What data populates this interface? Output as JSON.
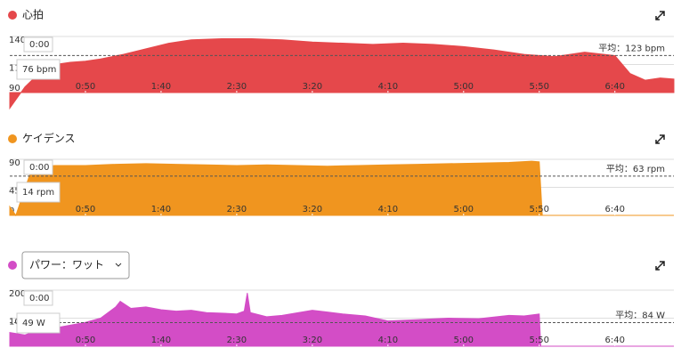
{
  "chart_data": [
    {
      "type": "area",
      "title": "心拍",
      "color": "#e5484b",
      "x": [
        0,
        10,
        20,
        30,
        40,
        50,
        60,
        75,
        90,
        105,
        120,
        140,
        160,
        180,
        200,
        220,
        240,
        260,
        280,
        300,
        320,
        340,
        360,
        380,
        400,
        410,
        420,
        430,
        439
      ],
      "values": [
        76,
        95,
        108,
        115,
        117,
        118,
        120,
        124,
        129,
        134,
        137,
        138,
        138,
        137,
        135,
        134,
        133,
        134,
        133,
        131,
        128,
        124,
        122,
        126,
        123,
        107,
        101,
        103,
        102
      ],
      "xlim": [
        0,
        439
      ],
      "xticks": [
        {
          "value": 50,
          "label": "0:50"
        },
        {
          "value": 100,
          "label": "1:40"
        },
        {
          "value": 150,
          "label": "2:30"
        },
        {
          "value": 200,
          "label": "3:20"
        },
        {
          "value": 250,
          "label": "4:10"
        },
        {
          "value": 300,
          "label": "5:00"
        },
        {
          "value": 350,
          "label": "5:50"
        },
        {
          "value": 400,
          "label": "6:40"
        }
      ],
      "ylim": [
        90,
        140
      ],
      "yticks": [
        90,
        115,
        140
      ],
      "grid": true,
      "average": {
        "value": 123,
        "label": "平均：123 bpm"
      },
      "tooltip": {
        "time": "0:00",
        "label": "76 bpm"
      }
    },
    {
      "type": "area",
      "title": "ケイデンス",
      "color": "#f0951f",
      "x": [
        0,
        4,
        15,
        30,
        50,
        70,
        90,
        110,
        130,
        150,
        170,
        190,
        210,
        230,
        250,
        270,
        290,
        310,
        330,
        345,
        350,
        352,
        439
      ],
      "values": [
        14,
        0,
        78,
        80,
        80,
        82,
        83,
        82,
        81,
        80,
        81,
        80,
        79,
        80,
        81,
        82,
        83,
        84,
        85,
        87,
        86,
        0,
        0
      ],
      "xlim": [
        0,
        439
      ],
      "xticks": [
        {
          "value": 50,
          "label": "0:50"
        },
        {
          "value": 100,
          "label": "1:40"
        },
        {
          "value": 150,
          "label": "2:30"
        },
        {
          "value": 200,
          "label": "3:20"
        },
        {
          "value": 250,
          "label": "4:10"
        },
        {
          "value": 300,
          "label": "5:00"
        },
        {
          "value": 350,
          "label": "5:50"
        },
        {
          "value": 400,
          "label": "6:40"
        }
      ],
      "ylim": [
        0,
        90
      ],
      "yticks": [
        0,
        45,
        90
      ],
      "grid": true,
      "average": {
        "value": 63,
        "label": "平均：63 rpm"
      },
      "tooltip": {
        "time": "0:00",
        "label": "14 rpm"
      }
    },
    {
      "type": "area",
      "title": "パワー：ワット",
      "color": "#d34dc6",
      "x": [
        0,
        10,
        20,
        30,
        40,
        50,
        60,
        70,
        73,
        80,
        90,
        100,
        110,
        120,
        130,
        140,
        150,
        155,
        157,
        159,
        170,
        180,
        200,
        210,
        220,
        235,
        250,
        270,
        290,
        310,
        330,
        340,
        350,
        351,
        439
      ],
      "values": [
        49,
        40,
        60,
        65,
        75,
        85,
        100,
        140,
        160,
        135,
        140,
        130,
        125,
        128,
        120,
        118,
        115,
        125,
        190,
        120,
        105,
        110,
        128,
        122,
        115,
        108,
        90,
        95,
        100,
        98,
        110,
        108,
        115,
        0,
        0
      ],
      "xlim": [
        0,
        439
      ],
      "xticks": [
        {
          "value": 50,
          "label": "0:50"
        },
        {
          "value": 100,
          "label": "1:40"
        },
        {
          "value": 150,
          "label": "2:30"
        },
        {
          "value": 200,
          "label": "3:20"
        },
        {
          "value": 250,
          "label": "4:10"
        },
        {
          "value": 300,
          "label": "5:00"
        },
        {
          "value": 350,
          "label": "5:50"
        },
        {
          "value": 400,
          "label": "6:40"
        }
      ],
      "ylim": [
        0,
        200
      ],
      "yticks": [
        0,
        100,
        200
      ],
      "grid": true,
      "average": {
        "value": 84,
        "label": "平均：84 W"
      },
      "tooltip": {
        "time": "0:00",
        "label": "49 W"
      }
    }
  ]
}
